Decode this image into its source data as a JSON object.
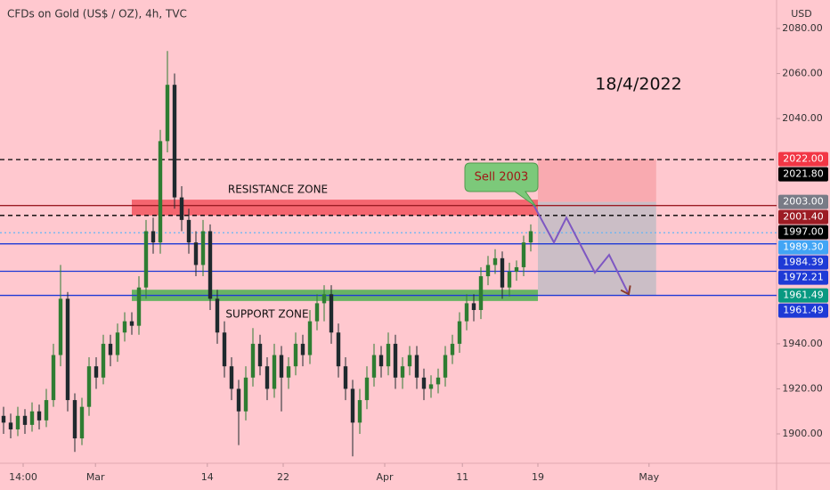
{
  "chart_data": {
    "type": "candlestick",
    "title": "CFDs on Gold (US$ / OZ), 4h, TVC",
    "currency": "USD",
    "annotation": "18/4/2022",
    "callout": "Sell 2003",
    "up_color": "#2e7d32",
    "down_color": "#1f2a2e",
    "ylim": [
      1880,
      2090
    ],
    "yticks": [
      {
        "value": 2080,
        "label": "2080.00"
      },
      {
        "value": 2060,
        "label": "2060.00"
      },
      {
        "value": 2040,
        "label": "2040.00"
      },
      {
        "value": 1940,
        "label": "1940.00"
      },
      {
        "value": 1920,
        "label": "1920.00"
      },
      {
        "value": 1900,
        "label": "1900.00"
      }
    ],
    "xlim": [
      -0.5,
      108.5
    ],
    "xticks": [
      {
        "value": 2.75,
        "label": "14:00"
      },
      {
        "value": 12.9,
        "label": "Mar"
      },
      {
        "value": 28.6,
        "label": "14"
      },
      {
        "value": 39.25,
        "label": "22"
      },
      {
        "value": 53.5,
        "label": "Apr"
      },
      {
        "value": 64.4,
        "label": "11"
      },
      {
        "value": 75,
        "label": "19"
      },
      {
        "value": 90.6,
        "label": "May"
      }
    ],
    "candles": [
      [
        1908,
        1912,
        1900,
        1905
      ],
      [
        1905,
        1909,
        1898,
        1902
      ],
      [
        1902,
        1912,
        1899,
        1908
      ],
      [
        1908,
        1911,
        1900,
        1904
      ],
      [
        1904,
        1914,
        1901,
        1910
      ],
      [
        1910,
        1913,
        1902,
        1906
      ],
      [
        1906,
        1920,
        1903,
        1915
      ],
      [
        1915,
        1940,
        1912,
        1935
      ],
      [
        1935,
        1975,
        1930,
        1960
      ],
      [
        1960,
        1963,
        1910,
        1915
      ],
      [
        1915,
        1918,
        1892,
        1898
      ],
      [
        1898,
        1916,
        1895,
        1912
      ],
      [
        1912,
        1934,
        1908,
        1930
      ],
      [
        1930,
        1934,
        1920,
        1925
      ],
      [
        1925,
        1944,
        1922,
        1940
      ],
      [
        1940,
        1944,
        1930,
        1935
      ],
      [
        1935,
        1949,
        1932,
        1945
      ],
      [
        1945,
        1954,
        1941,
        1950
      ],
      [
        1950,
        1954,
        1944,
        1948
      ],
      [
        1948,
        1970,
        1944,
        1965
      ],
      [
        1965,
        1995,
        1960,
        1990
      ],
      [
        1990,
        1996,
        1980,
        1985
      ],
      [
        1985,
        2035,
        1980,
        2030
      ],
      [
        2030,
        2070,
        2025,
        2055
      ],
      [
        2055,
        2060,
        2000,
        2005
      ],
      [
        2005,
        2010,
        1990,
        1995
      ],
      [
        1995,
        2000,
        1980,
        1985
      ],
      [
        1985,
        1990,
        1970,
        1975
      ],
      [
        1975,
        1995,
        1970,
        1990
      ],
      [
        1990,
        1993,
        1955,
        1960
      ],
      [
        1960,
        1964,
        1940,
        1945
      ],
      [
        1945,
        1950,
        1925,
        1930
      ],
      [
        1930,
        1934,
        1915,
        1920
      ],
      [
        1920,
        1924,
        1895,
        1910
      ],
      [
        1910,
        1930,
        1906,
        1925
      ],
      [
        1925,
        1947,
        1921,
        1940
      ],
      [
        1940,
        1944,
        1926,
        1930
      ],
      [
        1930,
        1934,
        1915,
        1920
      ],
      [
        1920,
        1940,
        1916,
        1935
      ],
      [
        1935,
        1939,
        1910,
        1925
      ],
      [
        1925,
        1934,
        1920,
        1930
      ],
      [
        1930,
        1945,
        1926,
        1940
      ],
      [
        1940,
        1944,
        1930,
        1935
      ],
      [
        1935,
        1955,
        1931,
        1950
      ],
      [
        1950,
        1962,
        1946,
        1958
      ],
      [
        1958,
        1966,
        1950,
        1962
      ],
      [
        1962,
        1966,
        1940,
        1945
      ],
      [
        1945,
        1949,
        1925,
        1930
      ],
      [
        1930,
        1934,
        1915,
        1920
      ],
      [
        1920,
        1924,
        1890,
        1905
      ],
      [
        1905,
        1920,
        1900,
        1915
      ],
      [
        1915,
        1930,
        1911,
        1925
      ],
      [
        1925,
        1940,
        1921,
        1935
      ],
      [
        1935,
        1939,
        1925,
        1930
      ],
      [
        1930,
        1945,
        1926,
        1940
      ],
      [
        1940,
        1944,
        1920,
        1925
      ],
      [
        1925,
        1934,
        1920,
        1930
      ],
      [
        1930,
        1939,
        1926,
        1935
      ],
      [
        1935,
        1939,
        1920,
        1925
      ],
      [
        1925,
        1929,
        1915,
        1920
      ],
      [
        1920,
        1926,
        1916,
        1922
      ],
      [
        1922,
        1929,
        1918,
        1925
      ],
      [
        1925,
        1939,
        1921,
        1935
      ],
      [
        1935,
        1944,
        1931,
        1940
      ],
      [
        1940,
        1954,
        1936,
        1950
      ],
      [
        1950,
        1962,
        1946,
        1958
      ],
      [
        1958,
        1962,
        1950,
        1955
      ],
      [
        1955,
        1974,
        1951,
        1970
      ],
      [
        1970,
        1979,
        1966,
        1975
      ],
      [
        1975,
        1982,
        1971,
        1978
      ],
      [
        1978,
        1981,
        1960,
        1965
      ],
      [
        1965,
        1976,
        1961,
        1972
      ],
      [
        1972,
        1977,
        1968,
        1974
      ],
      [
        1974,
        1988,
        1970,
        1985
      ],
      [
        1985,
        1993,
        1981,
        1990
      ]
    ],
    "levels": [
      {
        "value": 2021.8,
        "color": "#000000",
        "style": "dashed"
      },
      {
        "value": 2001.4,
        "color": "#9c1c24",
        "style": "solid"
      },
      {
        "value": 1997,
        "color": "#000000",
        "style": "dashed"
      },
      {
        "value": 1989.3,
        "color": "#64b5f6",
        "style": "dotted"
      },
      {
        "value": 1984.39,
        "color": "#1e3ad6",
        "style": "solid"
      },
      {
        "value": 1972.21,
        "color": "#1e3ad6",
        "style": "solid"
      },
      {
        "value": 1961.49,
        "color": "#1e3ad6",
        "style": "solid"
      }
    ],
    "zones": [
      {
        "label": "RESISTANCE ZONE",
        "from": 1997,
        "to": 2004,
        "x0": 18,
        "x1": 75,
        "color": "#f2545e"
      },
      {
        "label": "SUPPORT ZONE",
        "from": 1959,
        "to": 1964,
        "x0": 18,
        "x1": 75,
        "color": "#4caf50"
      }
    ],
    "position": {
      "x0": 75,
      "x1": 91.6,
      "entry": 2003,
      "stop": 2022,
      "target": 1961.49
    },
    "forecast": {
      "x": [
        74.25,
        77.25,
        79,
        83,
        85,
        87.75
      ],
      "y": [
        2002.5,
        1985,
        1996,
        1971.6,
        1979.5,
        1962
      ],
      "color": "#7e57c2",
      "arrow_color": "#8b3a2b"
    },
    "axis_tags": [
      {
        "value": 2022,
        "label": "2022.00",
        "color": "#f23645"
      },
      {
        "value": 2021.8,
        "label": "2021.80",
        "color": "#000000"
      },
      {
        "value": 2003,
        "label": "2003.00",
        "color": "#787b86"
      },
      {
        "value": 2001.4,
        "label": "2001.40",
        "color": "#9c1c24"
      },
      {
        "value": 1997,
        "label": "1997.00",
        "color": "#000000"
      },
      {
        "value": 1989.3,
        "label": "1989.30",
        "color": "#42a5f5"
      },
      {
        "value": 1984.39,
        "label": "1984.39",
        "color": "#1e3ad6"
      },
      {
        "value": 1972.21,
        "label": "1972.21",
        "color": "#1e3ad6"
      },
      {
        "value": 1961.49,
        "label": "1961.49",
        "color": "#089981"
      },
      {
        "value": 1961.49,
        "label": "1961.49",
        "color": "#1e3ad6"
      }
    ]
  }
}
